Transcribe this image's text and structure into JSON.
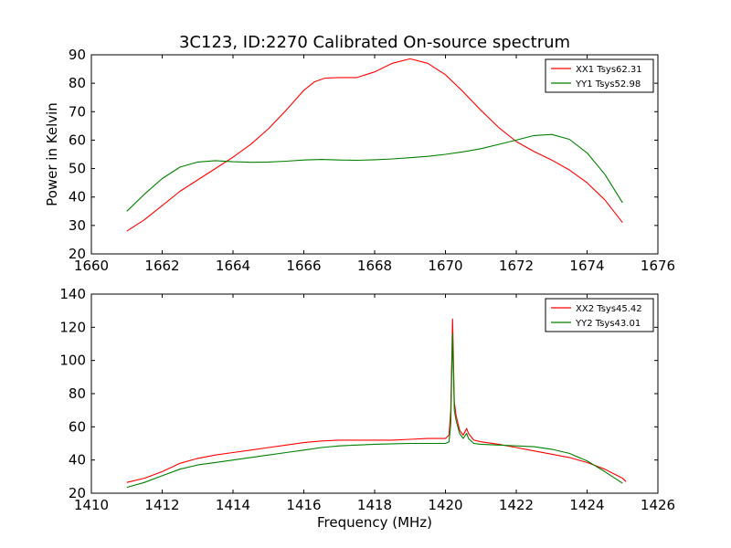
{
  "chart_data": [
    {
      "type": "line",
      "title": "3C123, ID:2270 Calibrated On-source spectrum",
      "xlabel": "",
      "ylabel": "Power in Kelvin",
      "xlim": [
        1660,
        1676
      ],
      "ylim": [
        20,
        90
      ],
      "xticks": [
        1660,
        1662,
        1664,
        1666,
        1668,
        1670,
        1672,
        1674,
        1676
      ],
      "yticks": [
        20,
        30,
        40,
        50,
        60,
        70,
        80,
        90
      ],
      "legend_position": "top-right",
      "series": [
        {
          "name": "XX1 Tsys62.31",
          "color": "#ff0000",
          "points": [
            [
              1661.0,
              28
            ],
            [
              1661.5,
              32
            ],
            [
              1662.0,
              37
            ],
            [
              1662.5,
              42
            ],
            [
              1663.0,
              46
            ],
            [
              1663.5,
              50
            ],
            [
              1664.0,
              54
            ],
            [
              1664.5,
              58.5
            ],
            [
              1665.0,
              64
            ],
            [
              1665.5,
              70.5
            ],
            [
              1666.0,
              77.5
            ],
            [
              1666.3,
              80.5
            ],
            [
              1666.6,
              81.8
            ],
            [
              1667.0,
              82
            ],
            [
              1667.5,
              82
            ],
            [
              1668.0,
              84
            ],
            [
              1668.5,
              87
            ],
            [
              1669.0,
              88.6
            ],
            [
              1669.5,
              87
            ],
            [
              1670.0,
              83
            ],
            [
              1670.5,
              77
            ],
            [
              1671.0,
              70.5
            ],
            [
              1671.5,
              64.5
            ],
            [
              1672.0,
              59.5
            ],
            [
              1672.5,
              56
            ],
            [
              1673.0,
              53
            ],
            [
              1673.5,
              49.5
            ],
            [
              1674.0,
              45
            ],
            [
              1674.5,
              39
            ],
            [
              1675.0,
              31
            ]
          ]
        },
        {
          "name": "YY1 Tsys52.98",
          "color": "#008000",
          "points": [
            [
              1661.0,
              35
            ],
            [
              1661.5,
              41
            ],
            [
              1662.0,
              46.5
            ],
            [
              1662.5,
              50.5
            ],
            [
              1663.0,
              52.3
            ],
            [
              1663.5,
              52.8
            ],
            [
              1664.0,
              52.4
            ],
            [
              1664.5,
              52.2
            ],
            [
              1665.0,
              52.3
            ],
            [
              1665.5,
              52.6
            ],
            [
              1666.0,
              53
            ],
            [
              1666.5,
              53.2
            ],
            [
              1667.0,
              53
            ],
            [
              1667.5,
              52.9
            ],
            [
              1668.0,
              53.1
            ],
            [
              1668.5,
              53.4
            ],
            [
              1669.0,
              53.8
            ],
            [
              1669.5,
              54.3
            ],
            [
              1670.0,
              55
            ],
            [
              1670.5,
              55.9
            ],
            [
              1671.0,
              57
            ],
            [
              1671.5,
              58.5
            ],
            [
              1672.0,
              60
            ],
            [
              1672.5,
              61.6
            ],
            [
              1673.0,
              62
            ],
            [
              1673.5,
              60.3
            ],
            [
              1674.0,
              55.5
            ],
            [
              1674.5,
              48
            ],
            [
              1675.0,
              38
            ]
          ]
        }
      ]
    },
    {
      "type": "line",
      "title": "",
      "xlabel": "Frequency (MHz)",
      "ylabel": "",
      "xlim": [
        1410,
        1426
      ],
      "ylim": [
        20,
        140
      ],
      "xticks": [
        1410,
        1412,
        1414,
        1416,
        1418,
        1420,
        1422,
        1424,
        1426
      ],
      "yticks": [
        20,
        40,
        60,
        80,
        100,
        120,
        140
      ],
      "legend_position": "top-right",
      "series": [
        {
          "name": "XX2 Tsys45.42",
          "color": "#ff0000",
          "points": [
            [
              1411.0,
              26.5
            ],
            [
              1411.5,
              29
            ],
            [
              1412.0,
              33
            ],
            [
              1412.5,
              38
            ],
            [
              1413.0,
              41
            ],
            [
              1413.5,
              43
            ],
            [
              1414.0,
              44.5
            ],
            [
              1414.5,
              46
            ],
            [
              1415.0,
              47.5
            ],
            [
              1415.5,
              49
            ],
            [
              1416.0,
              50.5
            ],
            [
              1416.5,
              51.5
            ],
            [
              1417.0,
              52
            ],
            [
              1417.5,
              52
            ],
            [
              1418.0,
              52
            ],
            [
              1418.5,
              52
            ],
            [
              1419.0,
              52.5
            ],
            [
              1419.5,
              53
            ],
            [
              1420.0,
              53
            ],
            [
              1420.1,
              55
            ],
            [
              1420.15,
              70
            ],
            [
              1420.2,
              125
            ],
            [
              1420.25,
              75
            ],
            [
              1420.3,
              67
            ],
            [
              1420.4,
              58
            ],
            [
              1420.5,
              55
            ],
            [
              1420.6,
              59
            ],
            [
              1420.65,
              56
            ],
            [
              1420.8,
              52
            ],
            [
              1421.0,
              51
            ],
            [
              1421.5,
              49.5
            ],
            [
              1422.0,
              47.5
            ],
            [
              1422.5,
              45.5
            ],
            [
              1423.0,
              43.5
            ],
            [
              1423.5,
              41.5
            ],
            [
              1424.0,
              38.5
            ],
            [
              1424.5,
              34.5
            ],
            [
              1425.0,
              29
            ],
            [
              1425.1,
              27
            ]
          ]
        },
        {
          "name": "YY2 Tsys43.01",
          "color": "#008000",
          "points": [
            [
              1411.0,
              23.5
            ],
            [
              1411.5,
              26.5
            ],
            [
              1412.0,
              30.5
            ],
            [
              1412.5,
              34.5
            ],
            [
              1413.0,
              37
            ],
            [
              1413.5,
              38.5
            ],
            [
              1414.0,
              40
            ],
            [
              1414.5,
              41.5
            ],
            [
              1415.0,
              43
            ],
            [
              1415.5,
              44.5
            ],
            [
              1416.0,
              46
            ],
            [
              1416.5,
              47.5
            ],
            [
              1417.0,
              48.5
            ],
            [
              1417.5,
              49
            ],
            [
              1418.0,
              49.5
            ],
            [
              1418.5,
              49.8
            ],
            [
              1419.0,
              50
            ],
            [
              1419.5,
              50
            ],
            [
              1420.0,
              50
            ],
            [
              1420.1,
              51
            ],
            [
              1420.15,
              62
            ],
            [
              1420.2,
              116
            ],
            [
              1420.25,
              70
            ],
            [
              1420.3,
              64
            ],
            [
              1420.4,
              56
            ],
            [
              1420.5,
              53
            ],
            [
              1420.6,
              56
            ],
            [
              1420.65,
              53
            ],
            [
              1420.8,
              50
            ],
            [
              1421.0,
              49.5
            ],
            [
              1421.5,
              49
            ],
            [
              1422.0,
              48.5
            ],
            [
              1422.5,
              48
            ],
            [
              1423.0,
              46.5
            ],
            [
              1423.5,
              44
            ],
            [
              1424.0,
              39.5
            ],
            [
              1424.5,
              33
            ],
            [
              1425.0,
              26
            ]
          ]
        }
      ]
    }
  ]
}
